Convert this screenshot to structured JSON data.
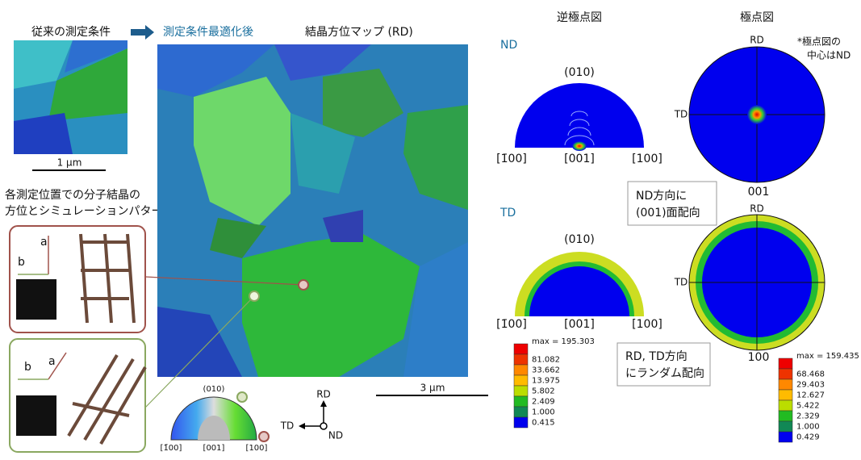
{
  "left": {
    "conventional_label": "従来の測定条件",
    "scale_small": "1 µm",
    "caption": [
      "各測定位置での分子結晶の",
      "方位とシミュレーションパターン"
    ],
    "panel1": {
      "a": "a",
      "b": "b"
    },
    "panel2": {
      "a": "a",
      "b": "b"
    }
  },
  "center": {
    "optimized_label": "測定条件最適化後",
    "map_title": "結晶方位マップ (RD)",
    "scale": "3 µm",
    "key": {
      "top": "(010)",
      "left": "[1̄00]",
      "mid": "[001]",
      "right": "[100]"
    },
    "axes": {
      "up": "RD",
      "left": "TD",
      "center": "ND"
    }
  },
  "right": {
    "ipf_title": "逆極点図",
    "pf_title": "極点図",
    "note": [
      "*極点図の",
      "中心はND"
    ],
    "rows": [
      {
        "label": "ND",
        "ipf": {
          "top": "(010)",
          "left": "[1̄00]",
          "mid": "[001]",
          "right": "[100]"
        },
        "pf": {
          "top": "RD",
          "left": "TD",
          "bottom": "001"
        },
        "callout": [
          "ND方向に",
          "(001)面配向"
        ]
      },
      {
        "label": "TD",
        "ipf": {
          "top": "(010)",
          "left": "[1̄00]",
          "mid": "[001]",
          "right": "[100]"
        },
        "pf": {
          "top": "RD",
          "left": "TD",
          "bottom": "100"
        },
        "callout": [
          "RD, TD方向",
          "にランダム配向"
        ]
      }
    ],
    "legends": [
      [
        "max = 195.303",
        "81.082",
        "33.662",
        "13.975",
        "5.802",
        "2.409",
        "1.000",
        "0.415"
      ],
      [
        "max = 159.435",
        "68.468",
        "29.403",
        "12.627",
        "5.422",
        "2.329",
        "1.000",
        "0.429"
      ]
    ]
  }
}
